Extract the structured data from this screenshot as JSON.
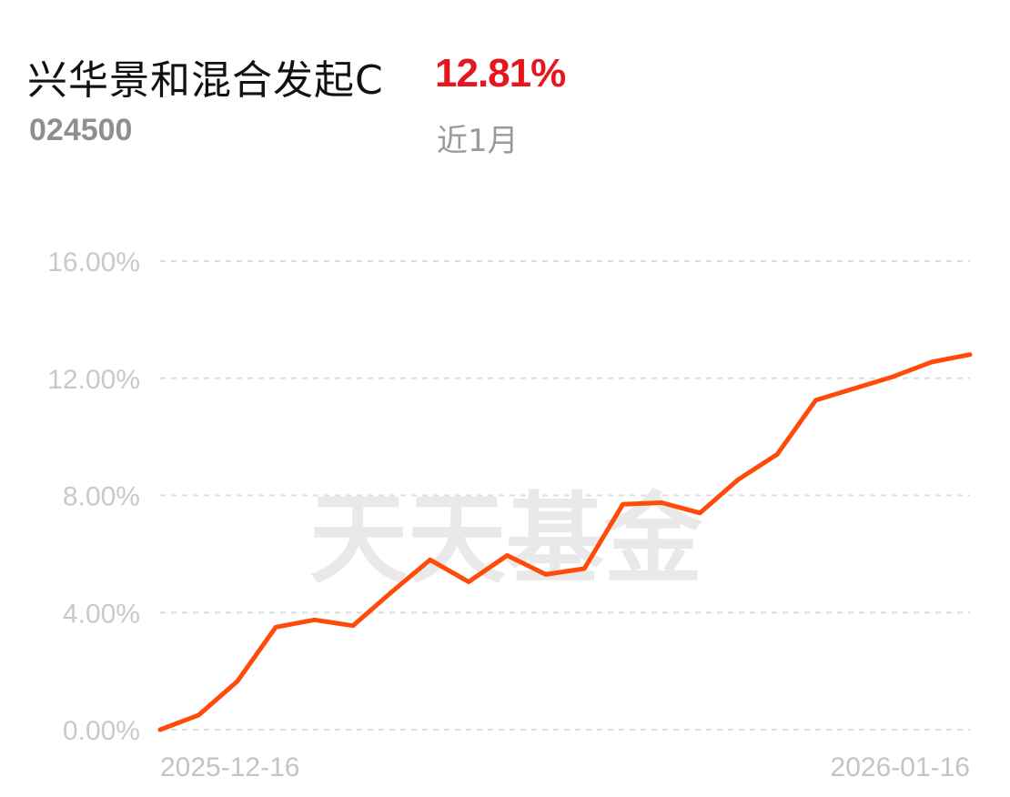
{
  "fund": {
    "name": "兴华景和混合发起C",
    "code": "024500",
    "return_text": "12.81%",
    "period": "近1月"
  },
  "watermark": "天天基金",
  "colors": {
    "line": "#ff4b0a",
    "return": "#e6161f",
    "grid": "#dedede"
  },
  "chart_data": {
    "type": "line",
    "title": "",
    "xlabel": "",
    "ylabel": "",
    "x_tick_labels": [
      "2025-12-16",
      "2026-01-16"
    ],
    "y_ticks": [
      0,
      4,
      8,
      12,
      16
    ],
    "y_tick_labels": [
      "0.00%",
      "4.00%",
      "8.00%",
      "12.00%",
      "16.00%"
    ],
    "ylim": [
      0,
      16
    ],
    "grid": true,
    "series": [
      {
        "name": "",
        "values": [
          0.0,
          0.5,
          1.65,
          3.5,
          3.75,
          3.55,
          4.7,
          5.8,
          5.05,
          5.95,
          5.3,
          5.5,
          7.7,
          7.75,
          7.4,
          8.55,
          9.4,
          11.25,
          11.65,
          12.05,
          12.55,
          12.81
        ]
      }
    ]
  }
}
